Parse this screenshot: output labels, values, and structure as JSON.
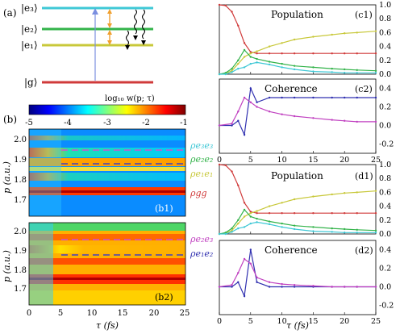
{
  "panel_labels": {
    "a": "(a)",
    "b": "(b)",
    "b1": "(b1)",
    "b2": "(b2)",
    "c1": "(c1)",
    "c2": "(c2)",
    "d1": "(d1)",
    "d2": "(d2)"
  },
  "levels": [
    {
      "label": "|e₃⟩",
      "color": "#3fc8d6"
    },
    {
      "label": "|e₂⟩",
      "color": "#33b34a"
    },
    {
      "label": "|e₁⟩",
      "color": "#c8c83a"
    },
    {
      "label": "|g⟩",
      "color": "#d03a3a"
    }
  ],
  "colorbar": {
    "title": "log₁₀ w(p; τ)",
    "ticks": [
      "-5",
      "-4",
      "-3",
      "-2",
      "-1"
    ],
    "range": [
      -5,
      -1
    ]
  },
  "heatmap": {
    "ylabel": "p (a.u.)",
    "xlabel": "τ (fs)",
    "yticks": [
      "2.0",
      "1.9",
      "1.8",
      "1.7"
    ],
    "xticks": [
      "0",
      "5",
      "10",
      "15",
      "20",
      "25"
    ]
  },
  "legend_b1": [
    {
      "label": "ρe₃e₃",
      "color": "#3fc8d6"
    },
    {
      "label": "ρe₂e₂",
      "color": "#33b34a"
    },
    {
      "label": "ρe₁e₁",
      "color": "#c8c83a"
    },
    {
      "label": "ρgg",
      "color": "#d03a3a"
    }
  ],
  "legend_b2": [
    {
      "label": "ρe₂e₃",
      "color": "#c040c0"
    },
    {
      "label": "ρe₁e₂",
      "color": "#3030b0"
    }
  ],
  "line_titles": {
    "population": "Population",
    "coherence": "Coherence"
  },
  "line_axes": {
    "xlabel": "τ (fs)",
    "xticks": [
      "0",
      "5",
      "10",
      "15",
      "20",
      "25"
    ],
    "pop_yticks": [
      "0.0",
      "0.2",
      "0.4",
      "0.6",
      "0.8",
      "1.0"
    ],
    "coh_yticks": [
      "0.4",
      "0.2",
      "0.0",
      "-0.2"
    ]
  },
  "chart_data": [
    {
      "type": "line",
      "title": "Population",
      "panel": "(c1)",
      "xlabel": "",
      "ylabel": "",
      "xlim": [
        0,
        25
      ],
      "ylim": [
        0,
        1.0
      ],
      "x": [
        0,
        1,
        2,
        3,
        4,
        5,
        6,
        8,
        10,
        12,
        15,
        18,
        20,
        22,
        25
      ],
      "series": [
        {
          "name": "ρgg",
          "color": "#d03a3a",
          "values": [
            1.0,
            0.99,
            0.9,
            0.7,
            0.45,
            0.32,
            0.3,
            0.3,
            0.3,
            0.3,
            0.3,
            0.3,
            0.3,
            0.3,
            0.3
          ]
        },
        {
          "name": "ρe₁e₁",
          "color": "#c8c83a",
          "values": [
            0,
            0.01,
            0.05,
            0.15,
            0.25,
            0.3,
            0.33,
            0.4,
            0.45,
            0.5,
            0.54,
            0.57,
            0.59,
            0.6,
            0.62
          ]
        },
        {
          "name": "ρe₂e₂",
          "color": "#33b34a",
          "values": [
            0,
            0.02,
            0.08,
            0.2,
            0.35,
            0.25,
            0.22,
            0.18,
            0.15,
            0.12,
            0.1,
            0.08,
            0.07,
            0.06,
            0.05
          ]
        },
        {
          "name": "ρe₃e₃",
          "color": "#3fc8d6",
          "values": [
            0,
            0.0,
            0.03,
            0.08,
            0.1,
            0.15,
            0.17,
            0.14,
            0.1,
            0.07,
            0.04,
            0.03,
            0.02,
            0.02,
            0.02
          ]
        }
      ]
    },
    {
      "type": "line",
      "title": "Coherence",
      "panel": "(c2)",
      "xlim": [
        0,
        25
      ],
      "ylim": [
        -0.3,
        0.5
      ],
      "x": [
        0,
        2,
        3,
        4,
        5,
        6,
        8,
        10,
        12,
        15,
        18,
        20,
        22,
        25
      ],
      "series": [
        {
          "name": "ρe₁e₂",
          "color": "#3030b0",
          "values": [
            0,
            0.0,
            0.05,
            -0.1,
            0.4,
            0.25,
            0.3,
            0.3,
            0.3,
            0.3,
            0.3,
            0.3,
            0.3,
            0.3
          ]
        },
        {
          "name": "ρe₂e₃",
          "color": "#c040c0",
          "values": [
            0,
            0.02,
            0.15,
            0.3,
            0.25,
            0.2,
            0.15,
            0.12,
            0.1,
            0.08,
            0.06,
            0.05,
            0.04,
            0.04
          ]
        }
      ]
    },
    {
      "type": "line",
      "title": "Population",
      "panel": "(d1)",
      "xlim": [
        0,
        25
      ],
      "ylim": [
        0,
        1.0
      ],
      "x": [
        0,
        1,
        2,
        3,
        4,
        5,
        6,
        8,
        10,
        12,
        15,
        18,
        20,
        22,
        25
      ],
      "series": [
        {
          "name": "ρgg",
          "color": "#d03a3a",
          "values": [
            1.0,
            0.99,
            0.9,
            0.7,
            0.45,
            0.32,
            0.3,
            0.3,
            0.3,
            0.3,
            0.3,
            0.3,
            0.3,
            0.3,
            0.3
          ]
        },
        {
          "name": "ρe₁e₁",
          "color": "#c8c83a",
          "values": [
            0,
            0.01,
            0.05,
            0.15,
            0.25,
            0.3,
            0.33,
            0.4,
            0.45,
            0.5,
            0.54,
            0.57,
            0.59,
            0.6,
            0.62
          ]
        },
        {
          "name": "ρe₂e₂",
          "color": "#33b34a",
          "values": [
            0,
            0.02,
            0.08,
            0.2,
            0.35,
            0.25,
            0.22,
            0.18,
            0.15,
            0.12,
            0.1,
            0.08,
            0.07,
            0.06,
            0.05
          ]
        },
        {
          "name": "ρe₃e₃",
          "color": "#3fc8d6",
          "values": [
            0,
            0.0,
            0.03,
            0.08,
            0.1,
            0.15,
            0.17,
            0.14,
            0.1,
            0.07,
            0.04,
            0.03,
            0.02,
            0.02,
            0.02
          ]
        }
      ]
    },
    {
      "type": "line",
      "title": "Coherence",
      "panel": "(d2)",
      "xlim": [
        0,
        25
      ],
      "ylim": [
        -0.3,
        0.5
      ],
      "x": [
        0,
        2,
        3,
        4,
        5,
        6,
        8,
        10,
        12,
        15,
        18,
        20,
        22,
        25
      ],
      "series": [
        {
          "name": "ρe₁e₂",
          "color": "#3030b0",
          "values": [
            0,
            0.0,
            0.05,
            -0.1,
            0.4,
            0.05,
            0.0,
            0.0,
            0.0,
            0.0,
            0.0,
            0.0,
            0.0,
            0.0
          ]
        },
        {
          "name": "ρe₂e₃",
          "color": "#c040c0",
          "values": [
            0,
            0.02,
            0.15,
            0.3,
            0.25,
            0.1,
            0.05,
            0.03,
            0.02,
            0.01,
            0.0,
            0.0,
            0.0,
            0.0
          ]
        }
      ]
    }
  ]
}
